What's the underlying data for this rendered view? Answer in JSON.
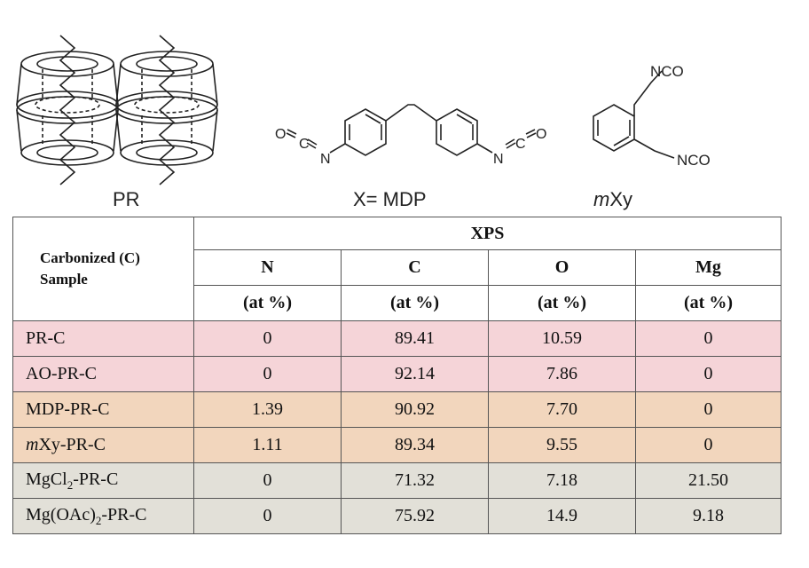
{
  "figure": {
    "labels": {
      "pr": "PR",
      "mdp_prefix": "X= ",
      "mdp": "MDP",
      "mxy_m": "m",
      "mxy_rest": "Xy"
    },
    "atoms": {
      "o": "O",
      "c": "C",
      "n": "N",
      "nco": "NCO"
    }
  },
  "table": {
    "sample_header_line1": "Carbonized  (C)",
    "sample_header_line2": "Sample",
    "group_header": "XPS",
    "columns": [
      {
        "name": "N",
        "unit": "(at %)"
      },
      {
        "name": "C",
        "unit": "(at %)"
      },
      {
        "name": "O",
        "unit": "(at %)"
      },
      {
        "name": "Mg",
        "unit": "(at %)"
      }
    ],
    "rows": [
      {
        "sample": "PR-C",
        "N": "0",
        "C": "89.41",
        "O": "10.59",
        "Mg": "0",
        "color": "#f5d4d8"
      },
      {
        "sample": "AO-PR-C",
        "N": "0",
        "C": "92.14",
        "O": "7.86",
        "Mg": "0",
        "color": "#f5d4d8"
      },
      {
        "sample": "MDP-PR-C",
        "N": "1.39",
        "C": "90.92",
        "O": "7.70",
        "Mg": "0",
        "color": "#f2d6bd"
      },
      {
        "sample_italic": "m",
        "sample_rest": "Xy-PR-C",
        "N": "1.11",
        "C": "89.34",
        "O": "9.55",
        "Mg": "0",
        "color": "#f2d6bd"
      },
      {
        "sample_pre": "MgCl",
        "sample_sub": "2",
        "sample_post": "-PR-C",
        "N": "0",
        "C": "71.32",
        "O": "7.18",
        "Mg": "21.50",
        "color": "#e2e0d8"
      },
      {
        "sample_pre": "Mg(OAc)",
        "sample_sub": "2",
        "sample_post": "-PR-C",
        "N": "0",
        "C": "75.92",
        "O": "14.9",
        "Mg": "9.18",
        "color": "#e2e0d8"
      }
    ]
  }
}
